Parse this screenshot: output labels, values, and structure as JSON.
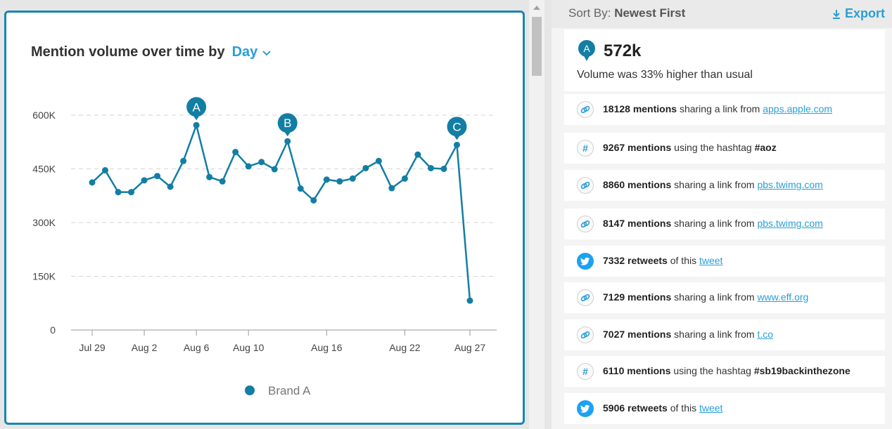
{
  "chart_panel": {
    "title": "Mention volume over time by",
    "granularity": "Day",
    "legend_label": "Brand A"
  },
  "chart_data": {
    "type": "line",
    "series": [
      {
        "name": "Brand A",
        "color": "#137ea3",
        "points": [
          {
            "day": 0,
            "value": 412000
          },
          {
            "day": 1,
            "value": 446000
          },
          {
            "day": 2,
            "value": 385000
          },
          {
            "day": 3,
            "value": 385000
          },
          {
            "day": 4,
            "value": 418000
          },
          {
            "day": 5,
            "value": 430000
          },
          {
            "day": 6,
            "value": 400000
          },
          {
            "day": 7,
            "value": 472000
          },
          {
            "day": 8,
            "value": 572000
          },
          {
            "day": 9,
            "value": 427000
          },
          {
            "day": 10,
            "value": 415000
          },
          {
            "day": 11,
            "value": 497000
          },
          {
            "day": 12,
            "value": 457000
          },
          {
            "day": 13,
            "value": 469000
          },
          {
            "day": 14,
            "value": 449000
          },
          {
            "day": 15,
            "value": 527000
          },
          {
            "day": 16,
            "value": 395000
          },
          {
            "day": 17,
            "value": 362000
          },
          {
            "day": 18,
            "value": 420000
          },
          {
            "day": 19,
            "value": 415000
          },
          {
            "day": 20,
            "value": 423000
          },
          {
            "day": 21,
            "value": 452000
          },
          {
            "day": 22,
            "value": 472000
          },
          {
            "day": 23,
            "value": 396000
          },
          {
            "day": 24,
            "value": 423000
          },
          {
            "day": 25,
            "value": 490000
          },
          {
            "day": 26,
            "value": 452000
          },
          {
            "day": 27,
            "value": 450000
          },
          {
            "day": 28,
            "value": 517000
          },
          {
            "day": 29,
            "value": 82000
          }
        ]
      }
    ],
    "x_ticks": [
      {
        "day": 0,
        "label": "Jul 29"
      },
      {
        "day": 4,
        "label": "Aug 2"
      },
      {
        "day": 8,
        "label": "Aug 6"
      },
      {
        "day": 12,
        "label": "Aug 10"
      },
      {
        "day": 18,
        "label": "Aug 16"
      },
      {
        "day": 24,
        "label": "Aug 22"
      },
      {
        "day": 29,
        "label": "Aug 27"
      }
    ],
    "y_ticks": [
      {
        "value": 0,
        "label": "0"
      },
      {
        "value": 150000,
        "label": "150K"
      },
      {
        "value": 300000,
        "label": "300K"
      },
      {
        "value": 450000,
        "label": "450K"
      },
      {
        "value": 600000,
        "label": "600K"
      }
    ],
    "ylim": [
      0,
      600000
    ],
    "annotations": [
      {
        "label": "A",
        "day": 8
      },
      {
        "label": "B",
        "day": 15
      },
      {
        "label": "C",
        "day": 28
      }
    ],
    "grid": true,
    "legend": "bottom"
  },
  "right_panel": {
    "sort_label": "Sort By:",
    "sort_value": "Newest First",
    "export_label": "Export",
    "summary": {
      "marker": "A",
      "value": "572k",
      "description": "Volume was 33% higher than usual"
    },
    "items": [
      {
        "icon": "link-icon",
        "count": "18128 mentions",
        "text": " sharing a link from ",
        "link": "apps.apple.com",
        "tail": ""
      },
      {
        "icon": "hashtag-icon",
        "count": "9267 mentions",
        "text": " using the hashtag ",
        "link": "",
        "tail": "#aoz"
      },
      {
        "icon": "link-icon",
        "count": "8860 mentions",
        "text": " sharing a link from ",
        "link": "pbs.twimg.com",
        "tail": ""
      },
      {
        "icon": "link-icon",
        "count": "8147 mentions",
        "text": " sharing a link from ",
        "link": "pbs.twimg.com",
        "tail": ""
      },
      {
        "icon": "twitter-icon",
        "count": "7332 retweets",
        "text": " of this ",
        "link": "tweet",
        "tail": ""
      },
      {
        "icon": "link-icon",
        "count": "7129 mentions",
        "text": " sharing a link from ",
        "link": "www.eff.org",
        "tail": ""
      },
      {
        "icon": "link-icon",
        "count": "7027 mentions",
        "text": " sharing a link from ",
        "link": "t.co",
        "tail": ""
      },
      {
        "icon": "hashtag-icon",
        "count": "6110 mentions",
        "text": " using the hashtag ",
        "link": "",
        "tail": "#sb19backinthezone"
      },
      {
        "icon": "twitter-icon",
        "count": "5906 retweets",
        "text": " of this ",
        "link": "tweet",
        "tail": ""
      }
    ]
  }
}
